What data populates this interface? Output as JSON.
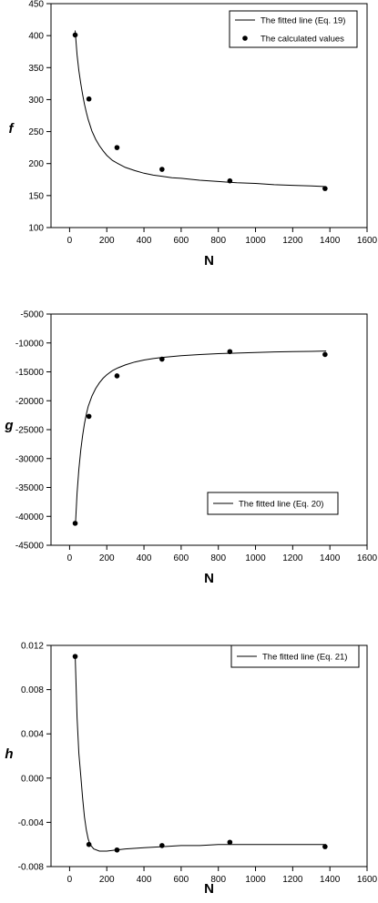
{
  "chart_data": [
    {
      "type": "scatter",
      "xlabel": "N",
      "ylabel": "f",
      "xlim": [
        -100,
        1600
      ],
      "ylim": [
        100,
        450
      ],
      "xticks": [
        "0",
        "200",
        "400",
        "600",
        "800",
        "1000",
        "1200",
        "1400",
        "1600"
      ],
      "yticks": [
        "100",
        "150",
        "200",
        "250",
        "300",
        "350",
        "400",
        "450"
      ],
      "legend_position": "top-right",
      "series": [
        {
          "name": "The fitted line (Eq. 19)",
          "kind": "line",
          "x": [
            30,
            40,
            50,
            60,
            70,
            80,
            90,
            100,
            120,
            140,
            160,
            180,
            200,
            230,
            260,
            300,
            350,
            400,
            450,
            500,
            550,
            600,
            700,
            800,
            900,
            1000,
            1100,
            1200,
            1300,
            1380
          ],
          "y": [
            408,
            370,
            345,
            325,
            308,
            293,
            280,
            269,
            251,
            238,
            228,
            220,
            213,
            205,
            200,
            194,
            189,
            185,
            182,
            180,
            178,
            177,
            174,
            172,
            170,
            169,
            167,
            166,
            165,
            164
          ]
        },
        {
          "name": "The calculated values",
          "kind": "points",
          "x": [
            30,
            104,
            255,
            497,
            862,
            1374
          ],
          "y": [
            401,
            301,
            225,
            191,
            173,
            161
          ]
        }
      ]
    },
    {
      "type": "scatter",
      "xlabel": "N",
      "ylabel": "g",
      "xlim": [
        -100,
        1600
      ],
      "ylim": [
        -45000,
        -5000
      ],
      "xticks": [
        "0",
        "200",
        "400",
        "600",
        "800",
        "1000",
        "1200",
        "1400",
        "1600"
      ],
      "yticks": [
        "-45000",
        "-40000",
        "-35000",
        "-30000",
        "-25000",
        "-20000",
        "-15000",
        "-10000",
        "-5000"
      ],
      "legend_position": "bottom-right",
      "series": [
        {
          "name": "The fitted line (Eq. 20)",
          "kind": "line",
          "x": [
            32,
            40,
            50,
            60,
            70,
            80,
            90,
            100,
            120,
            140,
            160,
            180,
            200,
            230,
            260,
            300,
            350,
            400,
            450,
            500,
            600,
            700,
            800,
            900,
            1000,
            1100,
            1200,
            1300,
            1380
          ],
          "y": [
            -41200,
            -36000,
            -31800,
            -28500,
            -26000,
            -24000,
            -22300,
            -21000,
            -19200,
            -17900,
            -16900,
            -16100,
            -15500,
            -14800,
            -14300,
            -13800,
            -13300,
            -12950,
            -12700,
            -12500,
            -12200,
            -12000,
            -11850,
            -11750,
            -11650,
            -11550,
            -11500,
            -11450,
            -11400
          ]
        },
        {
          "name": "",
          "kind": "points",
          "x": [
            30,
            104,
            255,
            497,
            862,
            1374
          ],
          "y": [
            -41200,
            -22700,
            -15700,
            -12800,
            -11500,
            -12000
          ]
        }
      ]
    },
    {
      "type": "scatter",
      "xlabel": "N",
      "ylabel": "h",
      "xlim": [
        -100,
        1600
      ],
      "ylim": [
        -0.008,
        0.012
      ],
      "xticks": [
        "0",
        "200",
        "400",
        "600",
        "800",
        "1000",
        "1200",
        "1400",
        "1600"
      ],
      "yticks": [
        "-0.008",
        "-0.004",
        "0.000",
        "0.004",
        "0.008",
        "0.012"
      ],
      "legend_position": "top-right",
      "series": [
        {
          "name": "The fitted line (Eq. 21)",
          "kind": "line",
          "x": [
            30,
            40,
            50,
            60,
            70,
            80,
            90,
            100,
            110,
            130,
            160,
            200,
            250,
            300,
            400,
            500,
            600,
            700,
            800,
            900,
            1000,
            1100,
            1200,
            1300,
            1380
          ],
          "y": [
            0.0112,
            0.0055,
            0.0022,
            0.0002,
            -0.0018,
            -0.0035,
            -0.0047,
            -0.0055,
            -0.006,
            -0.0064,
            -0.0066,
            -0.0066,
            -0.0065,
            -0.0064,
            -0.0063,
            -0.0062,
            -0.0061,
            -0.0061,
            -0.006,
            -0.006,
            -0.006,
            -0.006,
            -0.006,
            -0.006,
            -0.006
          ]
        },
        {
          "name": "",
          "kind": "points",
          "x": [
            30,
            104,
            255,
            497,
            862,
            1374
          ],
          "y": [
            0.011,
            -0.006,
            -0.0065,
            -0.0061,
            -0.0058,
            -0.0062
          ]
        }
      ]
    }
  ]
}
